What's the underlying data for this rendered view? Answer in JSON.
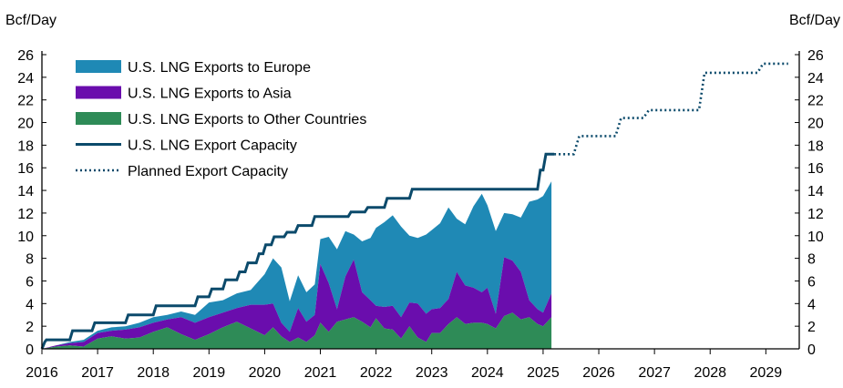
{
  "chart_data": {
    "type": "area",
    "title": "",
    "ylabel_left": "Bcf/Day",
    "ylabel_right": "Bcf/Day",
    "ylim": [
      0,
      26
    ],
    "yticks": [
      0,
      2,
      4,
      6,
      8,
      10,
      12,
      14,
      16,
      18,
      20,
      22,
      24,
      26
    ],
    "xlim": [
      2016,
      2029.6
    ],
    "xticks": [
      2016,
      2017,
      2018,
      2019,
      2020,
      2021,
      2022,
      2023,
      2024,
      2025,
      2026,
      2027,
      2028,
      2029
    ],
    "legend_position": "top-left",
    "colors": {
      "europe": "#1f89b5",
      "asia": "#6a0dad",
      "other": "#2e8b57",
      "capacity": "#0b4a6b",
      "planned": "#0b4a6b",
      "axis": "#000000"
    },
    "series": [
      {
        "name": "U.S. LNG Exports to Europe",
        "kind": "area-band",
        "x": [
          2016.0,
          2016.25,
          2016.5,
          2016.75,
          2017.0,
          2017.25,
          2017.5,
          2017.75,
          2018.0,
          2018.25,
          2018.5,
          2018.75,
          2019.0,
          2019.25,
          2019.5,
          2019.75,
          2020.0,
          2020.15,
          2020.3,
          2020.45,
          2020.6,
          2020.75,
          2020.9,
          2021.0,
          2021.15,
          2021.3,
          2021.45,
          2021.6,
          2021.75,
          2021.9,
          2022.0,
          2022.15,
          2022.3,
          2022.45,
          2022.6,
          2022.75,
          2022.9,
          2023.0,
          2023.15,
          2023.3,
          2023.45,
          2023.6,
          2023.75,
          2023.9,
          2024.0,
          2024.15,
          2024.3,
          2024.45,
          2024.6,
          2024.75,
          2024.9,
          2025.0,
          2025.15
        ],
        "lower": [
          0.0,
          0.3,
          0.5,
          0.6,
          1.4,
          1.6,
          1.7,
          1.9,
          2.3,
          2.6,
          2.8,
          2.3,
          2.8,
          3.2,
          3.6,
          3.9,
          3.9,
          4.0,
          2.3,
          1.5,
          3.6,
          2.4,
          3.0,
          7.5,
          5.8,
          3.5,
          6.4,
          7.9,
          5.0,
          4.3,
          3.8,
          3.7,
          3.8,
          2.8,
          4.1,
          4.0,
          3.1,
          3.5,
          3.6,
          4.4,
          6.8,
          5.6,
          5.4,
          5.0,
          5.4,
          3.1,
          8.1,
          7.8,
          6.8,
          4.3,
          3.5,
          3.2,
          4.9
        ],
        "upper": [
          0.0,
          0.3,
          0.6,
          0.8,
          1.6,
          1.9,
          2.0,
          2.3,
          2.8,
          3.0,
          3.3,
          3.0,
          4.1,
          4.3,
          4.9,
          5.2,
          6.6,
          8.0,
          7.2,
          4.2,
          6.5,
          5.0,
          5.7,
          9.7,
          9.9,
          8.8,
          10.4,
          10.1,
          9.5,
          9.8,
          10.7,
          11.2,
          11.8,
          10.8,
          10.0,
          9.8,
          10.1,
          10.5,
          11.1,
          12.5,
          11.5,
          11.0,
          12.6,
          13.7,
          12.7,
          10.4,
          12.0,
          11.9,
          11.6,
          13.0,
          13.2,
          13.5,
          14.8
        ]
      },
      {
        "name": "U.S. LNG Exports to Asia",
        "kind": "area-band",
        "x": [
          2016.0,
          2016.25,
          2016.5,
          2016.75,
          2017.0,
          2017.25,
          2017.5,
          2017.75,
          2018.0,
          2018.25,
          2018.5,
          2018.75,
          2019.0,
          2019.25,
          2019.5,
          2019.75,
          2020.0,
          2020.15,
          2020.3,
          2020.45,
          2020.6,
          2020.75,
          2020.9,
          2021.0,
          2021.15,
          2021.3,
          2021.45,
          2021.6,
          2021.75,
          2021.9,
          2022.0,
          2022.15,
          2022.3,
          2022.45,
          2022.6,
          2022.75,
          2022.9,
          2023.0,
          2023.15,
          2023.3,
          2023.45,
          2023.6,
          2023.75,
          2023.9,
          2024.0,
          2024.15,
          2024.3,
          2024.45,
          2024.6,
          2024.75,
          2024.9,
          2025.0,
          2025.15
        ],
        "lower": [
          0.0,
          0.2,
          0.3,
          0.2,
          0.9,
          1.1,
          0.9,
          1.0,
          1.5,
          1.9,
          1.3,
          0.8,
          1.3,
          1.9,
          2.4,
          1.8,
          1.2,
          1.9,
          1.1,
          0.6,
          1.0,
          0.6,
          1.2,
          2.3,
          1.5,
          2.4,
          2.6,
          2.8,
          2.4,
          1.9,
          2.7,
          1.8,
          1.7,
          0.9,
          2.0,
          1.0,
          0.6,
          1.4,
          1.4,
          2.2,
          2.8,
          2.2,
          2.3,
          2.3,
          2.2,
          1.8,
          2.9,
          3.2,
          2.6,
          2.8,
          2.2,
          2.0,
          2.8
        ],
        "upper": [
          0.0,
          0.3,
          0.5,
          0.6,
          1.4,
          1.6,
          1.7,
          1.9,
          2.3,
          2.6,
          2.8,
          2.3,
          2.8,
          3.2,
          3.6,
          3.9,
          3.9,
          4.0,
          2.3,
          1.5,
          3.6,
          2.4,
          3.0,
          7.5,
          5.8,
          3.5,
          6.4,
          7.9,
          5.0,
          4.3,
          3.8,
          3.7,
          3.8,
          2.8,
          4.1,
          4.0,
          3.1,
          3.5,
          3.6,
          4.4,
          6.8,
          5.6,
          5.4,
          5.0,
          5.4,
          3.1,
          8.1,
          7.8,
          6.8,
          4.3,
          3.5,
          3.2,
          4.9
        ]
      },
      {
        "name": "U.S. LNG Exports to Other Countries",
        "kind": "area-band",
        "x": [
          2016.0,
          2016.25,
          2016.5,
          2016.75,
          2017.0,
          2017.25,
          2017.5,
          2017.75,
          2018.0,
          2018.25,
          2018.5,
          2018.75,
          2019.0,
          2019.25,
          2019.5,
          2019.75,
          2020.0,
          2020.15,
          2020.3,
          2020.45,
          2020.6,
          2020.75,
          2020.9,
          2021.0,
          2021.15,
          2021.3,
          2021.45,
          2021.6,
          2021.75,
          2021.9,
          2022.0,
          2022.15,
          2022.3,
          2022.45,
          2022.6,
          2022.75,
          2022.9,
          2023.0,
          2023.15,
          2023.3,
          2023.45,
          2023.6,
          2023.75,
          2023.9,
          2024.0,
          2024.15,
          2024.3,
          2024.45,
          2024.6,
          2024.75,
          2024.9,
          2025.0,
          2025.15
        ],
        "lower": [
          0.0,
          0.0,
          0.0,
          0.0,
          0.0,
          0.0,
          0.0,
          0.0,
          0.0,
          0.0,
          0.0,
          0.0,
          0.0,
          0.0,
          0.0,
          0.0,
          0.0,
          0.0,
          0.0,
          0.0,
          0.0,
          0.0,
          0.0,
          0.0,
          0.0,
          0.0,
          0.0,
          0.0,
          0.0,
          0.0,
          0.0,
          0.0,
          0.0,
          0.0,
          0.0,
          0.0,
          0.0,
          0.0,
          0.0,
          0.0,
          0.0,
          0.0,
          0.0,
          0.0,
          0.0,
          0.0,
          0.0,
          0.0,
          0.0,
          0.0,
          0.0,
          0.0,
          0.0
        ],
        "upper": [
          0.0,
          0.2,
          0.3,
          0.2,
          0.9,
          1.1,
          0.9,
          1.0,
          1.5,
          1.9,
          1.3,
          0.8,
          1.3,
          1.9,
          2.4,
          1.8,
          1.2,
          1.9,
          1.1,
          0.6,
          1.0,
          0.6,
          1.2,
          2.3,
          1.5,
          2.4,
          2.6,
          2.8,
          2.4,
          1.9,
          2.7,
          1.8,
          1.7,
          0.9,
          2.0,
          1.0,
          0.6,
          1.4,
          1.4,
          2.2,
          2.8,
          2.2,
          2.3,
          2.3,
          2.2,
          1.8,
          2.9,
          3.2,
          2.6,
          2.8,
          2.2,
          2.0,
          2.8
        ]
      },
      {
        "name": "U.S. LNG Export Capacity",
        "kind": "step-line",
        "x": [
          2016.0,
          2016.05,
          2016.08,
          2016.5,
          2016.55,
          2016.9,
          2016.95,
          2017.5,
          2017.55,
          2018.0,
          2018.05,
          2018.75,
          2018.8,
          2019.0,
          2019.05,
          2019.25,
          2019.3,
          2019.5,
          2019.55,
          2019.65,
          2019.7,
          2019.85,
          2019.9,
          2019.97,
          2020.02,
          2020.12,
          2020.17,
          2020.35,
          2020.4,
          2020.55,
          2020.6,
          2020.85,
          2020.9,
          2021.5,
          2021.55,
          2021.8,
          2021.85,
          2022.15,
          2022.2,
          2022.6,
          2022.65,
          2024.9,
          2024.95,
          2025.0,
          2025.05,
          2025.2
        ],
        "y": [
          0.0,
          0.6,
          0.8,
          0.8,
          1.6,
          1.6,
          2.3,
          2.3,
          3.0,
          3.0,
          3.8,
          3.8,
          4.6,
          4.6,
          5.3,
          5.3,
          6.1,
          6.1,
          6.8,
          6.8,
          7.6,
          7.6,
          8.4,
          8.4,
          9.2,
          9.2,
          9.9,
          9.9,
          10.3,
          10.3,
          10.9,
          10.9,
          11.7,
          11.7,
          12.1,
          12.1,
          12.5,
          12.5,
          13.3,
          13.3,
          14.1,
          14.1,
          15.8,
          15.8,
          17.2,
          17.2
        ]
      },
      {
        "name": "Planned Export Capacity",
        "kind": "step-line-dotted",
        "x": [
          2025.2,
          2025.55,
          2025.65,
          2026.3,
          2026.4,
          2026.8,
          2026.9,
          2027.8,
          2027.9,
          2028.85,
          2028.95,
          2029.4
        ],
        "y": [
          17.2,
          17.2,
          18.8,
          18.8,
          20.4,
          20.4,
          21.1,
          21.1,
          24.4,
          24.4,
          25.2,
          25.2
        ]
      }
    ]
  }
}
